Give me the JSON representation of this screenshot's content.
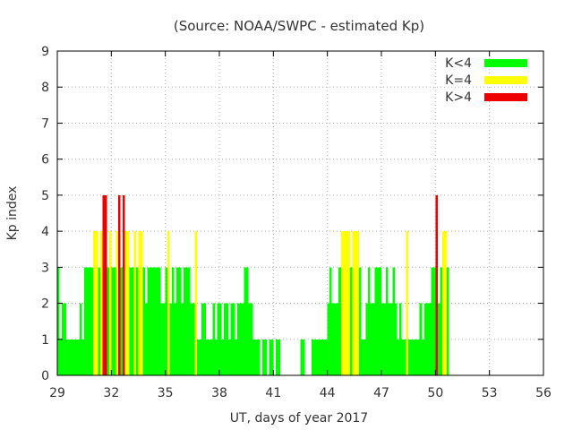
{
  "chart_data": {
    "type": "bar",
    "title": "(Source: NOAA/SWPC - estimated Kp)",
    "xlabel": "UT, days of year 2017",
    "ylabel": "Kp index",
    "xlim": [
      29,
      56
    ],
    "ylim": [
      0,
      9
    ],
    "xticks": [
      "29",
      "32",
      "35",
      "38",
      "41",
      "44",
      "47",
      "50",
      "53",
      "56"
    ],
    "yticks": [
      "0",
      "1",
      "2",
      "3",
      "4",
      "5",
      "6",
      "7",
      "8",
      "9"
    ],
    "grid": true,
    "legend_position": "top-right",
    "series": [
      {
        "name": "K<4",
        "color": "#00ff00"
      },
      {
        "name": "K=4",
        "color": "#ffff00"
      },
      {
        "name": "K>4",
        "color": "#ee0000"
      }
    ],
    "bin_hours": 3,
    "kp_values": [
      3,
      1,
      2,
      2,
      1,
      1,
      1,
      1,
      1,
      1,
      2,
      1,
      3,
      3,
      3,
      3,
      4,
      4,
      3,
      4,
      5,
      5,
      3,
      4,
      3,
      3,
      4,
      5,
      3,
      5,
      4,
      4,
      3,
      3,
      4,
      3,
      4,
      4,
      3,
      2,
      3,
      3,
      3,
      3,
      3,
      3,
      2,
      2,
      3,
      4,
      2,
      3,
      2,
      3,
      3,
      2,
      3,
      3,
      3,
      2,
      2,
      4,
      1,
      1,
      2,
      2,
      1,
      1,
      1,
      2,
      1,
      2,
      2,
      1,
      2,
      2,
      1,
      2,
      2,
      1,
      2,
      2,
      2,
      3,
      3,
      2,
      2,
      1,
      1,
      1,
      0,
      1,
      1,
      0,
      1,
      1,
      0,
      1,
      1,
      0,
      0,
      0,
      0,
      0,
      0,
      0,
      0,
      0,
      1,
      1,
      0,
      0,
      0,
      1,
      1,
      1,
      1,
      1,
      1,
      1,
      2,
      3,
      2,
      2,
      2,
      3,
      4,
      4,
      4,
      4,
      3,
      4,
      4,
      4,
      3,
      1,
      1,
      2,
      3,
      2,
      2,
      3,
      3,
      3,
      2,
      2,
      3,
      2,
      2,
      3,
      2,
      1,
      2,
      1,
      1,
      4,
      1,
      1,
      1,
      1,
      1,
      2,
      1,
      2,
      2,
      2,
      3,
      3,
      5,
      2,
      3,
      4,
      4,
      3
    ]
  }
}
